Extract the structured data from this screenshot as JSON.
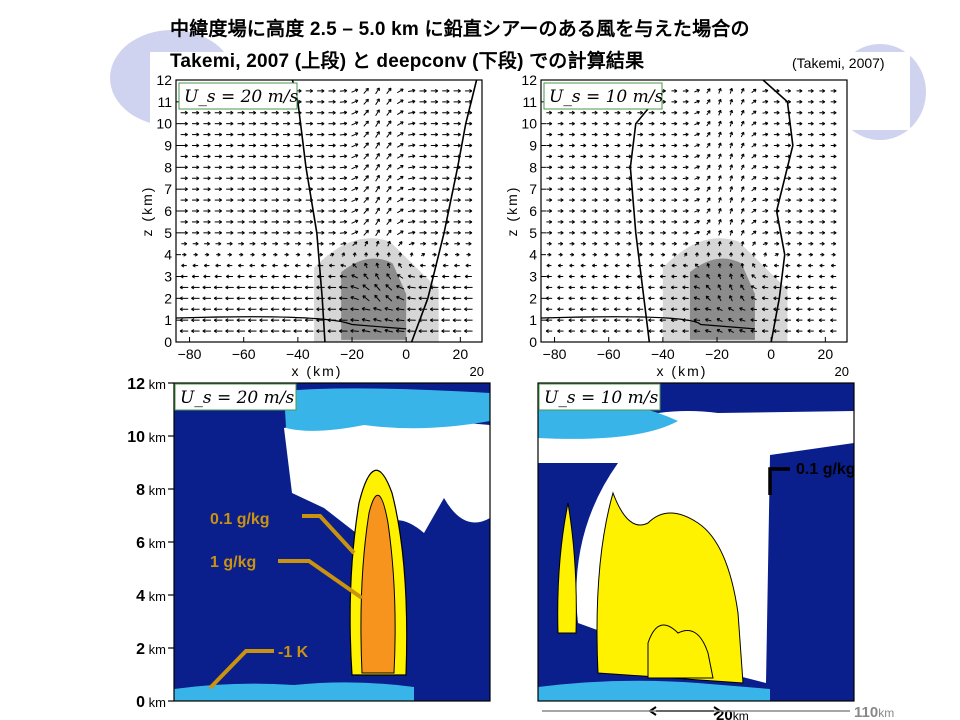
{
  "title": {
    "line1": "中緯度場に高度 2.5 – 5.0 km に鉛直シアーのある風を与えた場合の",
    "line2": "Takemi, 2007 (上段) と deepconv (下段) での計算結果",
    "citation": "(Takemi, 2007)"
  },
  "chart_data": [
    {
      "type": "vector-contour",
      "panel": "top-left",
      "label": "U_s = 20 m/s",
      "xlabel": "x (km)",
      "ylabel": "z (km)",
      "xlim": [
        -85,
        28
      ],
      "ylim": [
        0,
        12
      ],
      "xticks": [
        -80,
        -60,
        -40,
        -20,
        0,
        20
      ],
      "yticks": [
        0,
        1,
        2,
        3,
        4,
        5,
        6,
        7,
        8,
        9,
        10,
        11,
        12
      ],
      "xtick_labels": [
        "−80",
        "−60",
        "−40",
        "−20",
        "0",
        "20"
      ],
      "corner_label": "20",
      "shear_speed": 20
    },
    {
      "type": "vector-contour",
      "panel": "top-right",
      "label": "U_s = 10 m/s",
      "xlabel": "x (km)",
      "ylabel": "z (km)",
      "xlim": [
        -85,
        28
      ],
      "ylim": [
        0,
        12
      ],
      "xticks": [
        -80,
        -60,
        -40,
        -20,
        0,
        20
      ],
      "yticks": [
        0,
        1,
        2,
        3,
        4,
        5,
        6,
        7,
        8,
        9,
        10,
        11,
        12
      ],
      "xtick_labels": [
        "−80",
        "−60",
        "−40",
        "−20",
        "0",
        "20"
      ],
      "corner_label": "20",
      "shear_speed": 10
    },
    {
      "type": "heatmap",
      "panel": "bottom-left",
      "label": "U_s = 20 m/s",
      "ylim": [
        0,
        12
      ],
      "yticks": [
        {
          "value": 12,
          "label": "12",
          "unit": "km"
        },
        {
          "value": 10,
          "label": "10",
          "unit": "km"
        },
        {
          "value": 8,
          "label": "8",
          "unit": "km"
        },
        {
          "value": 6,
          "label": "6",
          "unit": "km"
        },
        {
          "value": 4,
          "label": "4",
          "unit": "km"
        },
        {
          "value": 2,
          "label": "2",
          "unit": "km"
        },
        {
          "value": 0,
          "label": "0",
          "unit": "km"
        }
      ],
      "annotations": [
        {
          "text": "0.1 g/kg",
          "color": "#e8a000"
        },
        {
          "text": "1 g/kg",
          "color": "#e8a000"
        },
        {
          "text": "-1 K",
          "color": "#e8a000"
        }
      ]
    },
    {
      "type": "heatmap",
      "panel": "bottom-right",
      "label": "U_s = 10 m/s",
      "ylim": [
        0,
        12
      ],
      "annotations": [
        {
          "text": "0.1 g/kg",
          "color": "#000000"
        }
      ],
      "scale_bars": [
        {
          "text": "20",
          "unit": "km"
        },
        {
          "text": "110",
          "unit": "km"
        }
      ]
    }
  ],
  "colors": {
    "background_ellipse": "#cfd3f0",
    "deep_blue": "#0a1e8c",
    "light_blue": "#38b4e8",
    "white": "#ffffff",
    "yellow": "#fff200",
    "orange": "#f7941d",
    "shade_light": "#d6d6d6",
    "shade_dark": "#8c8c8c",
    "annotation": "#c9920f"
  }
}
